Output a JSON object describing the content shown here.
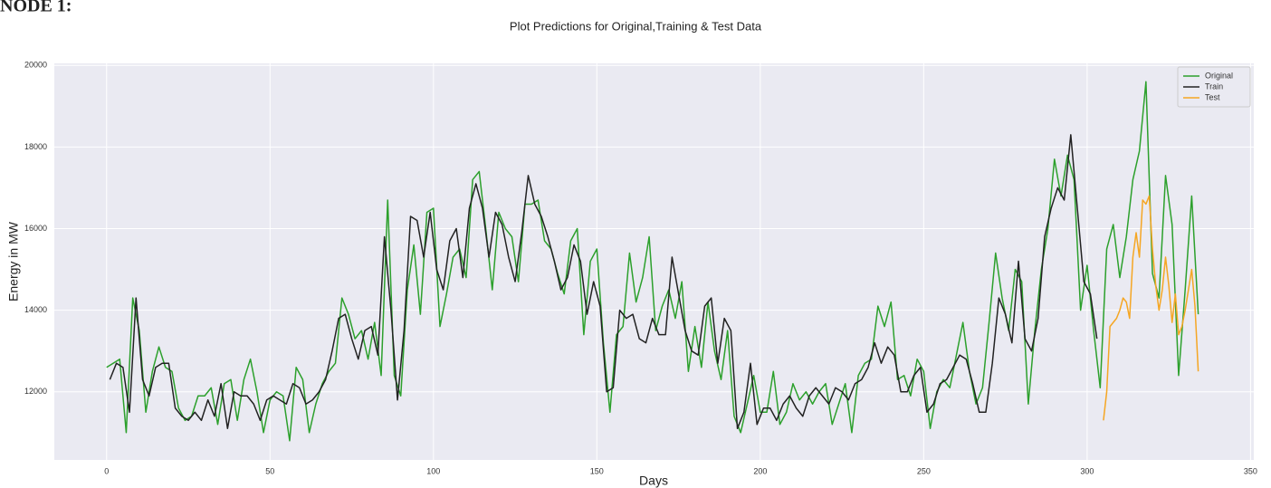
{
  "caption": "NODE 1:",
  "chart_data": {
    "type": "line",
    "title": "Plot Predictions for Original,Training & Test Data",
    "xlabel": "Days",
    "ylabel": "Energy in MW",
    "xlim": [
      -16,
      351
    ],
    "ylim": [
      10330,
      20050
    ],
    "xticks": [
      0,
      50,
      100,
      150,
      200,
      250,
      300,
      350
    ],
    "yticks": [
      12000,
      14000,
      16000,
      18000,
      20000
    ],
    "grid": true,
    "legend": "upper right",
    "series": [
      {
        "name": "Original",
        "color": "#2ca02c",
        "x": [
          0,
          2,
          4,
          6,
          8,
          10,
          12,
          14,
          16,
          18,
          20,
          22,
          24,
          26,
          28,
          30,
          32,
          34,
          36,
          38,
          40,
          42,
          44,
          46,
          48,
          50,
          52,
          54,
          56,
          58,
          60,
          62,
          64,
          66,
          68,
          70,
          72,
          74,
          76,
          78,
          80,
          82,
          84,
          86,
          88,
          90,
          92,
          94,
          96,
          98,
          100,
          102,
          104,
          106,
          108,
          110,
          112,
          114,
          116,
          118,
          120,
          122,
          124,
          126,
          128,
          130,
          132,
          134,
          136,
          138,
          140,
          142,
          144,
          146,
          148,
          150,
          152,
          154,
          156,
          158,
          160,
          162,
          164,
          166,
          168,
          170,
          172,
          174,
          176,
          178,
          180,
          182,
          184,
          186,
          188,
          190,
          192,
          194,
          196,
          198,
          200,
          202,
          204,
          206,
          208,
          210,
          212,
          214,
          216,
          218,
          220,
          222,
          224,
          226,
          228,
          230,
          232,
          234,
          236,
          238,
          240,
          242,
          244,
          246,
          248,
          250,
          252,
          254,
          256,
          258,
          260,
          262,
          264,
          266,
          268,
          270,
          272,
          274,
          276,
          278,
          280,
          282,
          284,
          286,
          288,
          290,
          292,
          294,
          296,
          298,
          300,
          302,
          304,
          306,
          308,
          310,
          312,
          314,
          316,
          318,
          320,
          322,
          324,
          326,
          328,
          330,
          332,
          334
        ],
        "values": [
          12600,
          12700,
          12800,
          11000,
          14300,
          13500,
          11500,
          12500,
          13100,
          12600,
          12500,
          11600,
          11300,
          11400,
          11900,
          11900,
          12100,
          11200,
          12200,
          12300,
          11300,
          12300,
          12800,
          12000,
          11000,
          11800,
          12000,
          11900,
          10800,
          12600,
          12300,
          11000,
          11700,
          12200,
          12500,
          12700,
          14300,
          13900,
          13300,
          13500,
          12800,
          13700,
          12400,
          16700,
          12400,
          11900,
          14500,
          15600,
          13900,
          16400,
          16500,
          13600,
          14400,
          15300,
          15500,
          14800,
          17200,
          17400,
          16000,
          14500,
          16400,
          16000,
          15800,
          14700,
          16600,
          16600,
          16700,
          15700,
          15500,
          14900,
          14400,
          15700,
          16000,
          13400,
          15200,
          15500,
          13200,
          11500,
          13400,
          13600,
          15400,
          14200,
          14800,
          15800,
          13500,
          14100,
          14500,
          13800,
          14700,
          12500,
          13600,
          12600,
          14200,
          13000,
          12300,
          13500,
          11400,
          11000,
          11700,
          12400,
          11500,
          11500,
          12500,
          11200,
          11500,
          12200,
          11800,
          12000,
          11700,
          12000,
          12200,
          11200,
          11700,
          12200,
          11000,
          12400,
          12700,
          12800,
          14100,
          13600,
          14200,
          12300,
          12400,
          11900,
          12800,
          12500,
          11100,
          12000,
          12300,
          12100,
          12900,
          13700,
          12500,
          11700,
          12100,
          13700,
          15400,
          14300,
          13500,
          15000,
          14700,
          11700,
          13500,
          15000,
          16000,
          17700,
          16800,
          17800,
          17200,
          14000,
          15100,
          13500,
          12100,
          15500,
          16100,
          14800,
          15800,
          17200,
          17900,
          19600,
          14900,
          14300,
          17300,
          16100,
          12400,
          14500,
          16800,
          13900
        ]
      },
      {
        "name": "Train",
        "color": "#222222",
        "x": [
          1,
          3,
          5,
          7,
          9,
          11,
          13,
          15,
          17,
          19,
          21,
          23,
          25,
          27,
          29,
          31,
          33,
          35,
          37,
          39,
          41,
          43,
          45,
          47,
          49,
          51,
          53,
          55,
          57,
          59,
          61,
          63,
          65,
          67,
          69,
          71,
          73,
          75,
          77,
          79,
          81,
          83,
          85,
          87,
          89,
          91,
          93,
          95,
          97,
          99,
          101,
          103,
          105,
          107,
          109,
          111,
          113,
          115,
          117,
          119,
          121,
          123,
          125,
          127,
          129,
          131,
          133,
          135,
          137,
          139,
          141,
          143,
          145,
          147,
          149,
          151,
          153,
          155,
          157,
          159,
          161,
          163,
          165,
          167,
          169,
          171,
          173,
          175,
          177,
          179,
          181,
          183,
          185,
          187,
          189,
          191,
          193,
          195,
          197,
          199,
          201,
          203,
          205,
          207,
          209,
          211,
          213,
          215,
          217,
          219,
          221,
          223,
          225,
          227,
          229,
          231,
          233,
          235,
          237,
          239,
          241,
          243,
          245,
          247,
          249,
          251,
          253,
          255,
          257,
          259,
          261,
          263,
          265,
          267,
          269,
          271,
          273,
          275,
          277,
          279,
          281,
          283,
          285,
          287,
          289,
          291,
          293,
          295,
          297,
          299,
          301,
          303
        ],
        "values": [
          12300,
          12700,
          12600,
          11500,
          14300,
          12300,
          11900,
          12600,
          12700,
          12700,
          11600,
          11400,
          11300,
          11500,
          11300,
          11800,
          11400,
          12200,
          11100,
          12000,
          11900,
          11900,
          11700,
          11300,
          11800,
          11900,
          11800,
          11700,
          12200,
          12100,
          11700,
          11800,
          12000,
          12300,
          13000,
          13800,
          13900,
          13300,
          12800,
          13500,
          13600,
          12900,
          15800,
          14000,
          11800,
          13500,
          16300,
          16200,
          15300,
          16400,
          15000,
          14500,
          15700,
          16000,
          14800,
          16500,
          17100,
          16500,
          15300,
          16400,
          16100,
          15300,
          14700,
          15900,
          17300,
          16600,
          16300,
          15800,
          15200,
          14500,
          14800,
          15600,
          15200,
          13900,
          14700,
          14100,
          12000,
          12100,
          14000,
          13800,
          13900,
          13300,
          13200,
          13800,
          13400,
          13400,
          15300,
          14400,
          13500,
          13000,
          12900,
          14100,
          14300,
          12700,
          13800,
          13500,
          11100,
          11500,
          12700,
          11200,
          11600,
          11600,
          11300,
          11700,
          11900,
          11600,
          11400,
          11900,
          12100,
          11900,
          11700,
          12100,
          12000,
          11800,
          12200,
          12300,
          12600,
          13200,
          12700,
          13100,
          12900,
          12000,
          12000,
          12400,
          12600,
          11500,
          11700,
          12200,
          12300,
          12600,
          12900,
          12800,
          12200,
          11500,
          11500,
          12700,
          14300,
          13900,
          13200,
          15200,
          13300,
          13000,
          13800,
          15800,
          16500,
          17000,
          16700,
          18300,
          16500,
          14700,
          14400,
          13300
        ]
      },
      {
        "name": "Test",
        "color": "#f5a623",
        "x": [
          305,
          306,
          307,
          308,
          309,
          310,
          311,
          312,
          313,
          314,
          315,
          316,
          317,
          318,
          319,
          320,
          321,
          322,
          323,
          324,
          325,
          326,
          327,
          328,
          329,
          330,
          331,
          332,
          333,
          334
        ],
        "values": [
          11300,
          12000,
          13600,
          13700,
          13800,
          14000,
          14300,
          14200,
          13800,
          15300,
          15900,
          15300,
          16700,
          16600,
          16800,
          15500,
          14600,
          14000,
          14500,
          15300,
          14600,
          13700,
          14400,
          13400,
          13600,
          14000,
          14500,
          15000,
          14100,
          12500
        ]
      }
    ]
  }
}
